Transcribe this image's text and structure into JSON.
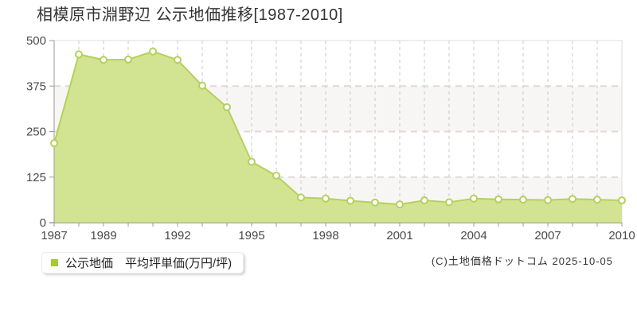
{
  "page": {
    "title": "相模原市淵野辺 公示地価推移[1987-2010]",
    "copyright": "(C)土地価格ドットコム 2025-10-05"
  },
  "legend": {
    "label": "公示地価　平均坪単価(万円/坪)",
    "swatch_color": "#a4cc2c"
  },
  "chart_data": {
    "type": "area",
    "title": "相模原市淵野辺 公示地価推移[1987-2010]",
    "series_name": "公示地価 平均坪単価(万円/坪)",
    "x": [
      1987,
      1988,
      1989,
      1990,
      1991,
      1992,
      1993,
      1994,
      1995,
      1996,
      1997,
      1998,
      1999,
      2000,
      2001,
      2002,
      2003,
      2004,
      2005,
      2006,
      2007,
      2008,
      2009,
      2010
    ],
    "values": [
      218,
      462,
      447,
      448,
      470,
      447,
      376,
      317,
      167,
      129,
      69,
      66,
      60,
      55,
      50,
      61,
      56,
      66,
      64,
      63,
      62,
      65,
      63,
      61
    ],
    "ylabel": "万円/坪",
    "ylim": [
      0,
      500
    ],
    "yticks": [
      0,
      125,
      250,
      375,
      500
    ],
    "xtick_labels": [
      1987,
      1989,
      1992,
      1995,
      1998,
      2001,
      2004,
      2007,
      2010
    ],
    "grid": "dashed",
    "legend_position": "bottom-left",
    "colors": {
      "area_fill": "#d2e391",
      "line": "#b4d15c",
      "marker_fill": "#ffffff",
      "marker_stroke": "#b4d15c",
      "grid_v": "#c9c9c9",
      "grid_h": "#dedada",
      "band_alt": "#f8f5f5",
      "band_main": "#ffffff",
      "axis": "#999999",
      "tick_text": "#4a4a4a",
      "border": "#dddddd"
    }
  }
}
